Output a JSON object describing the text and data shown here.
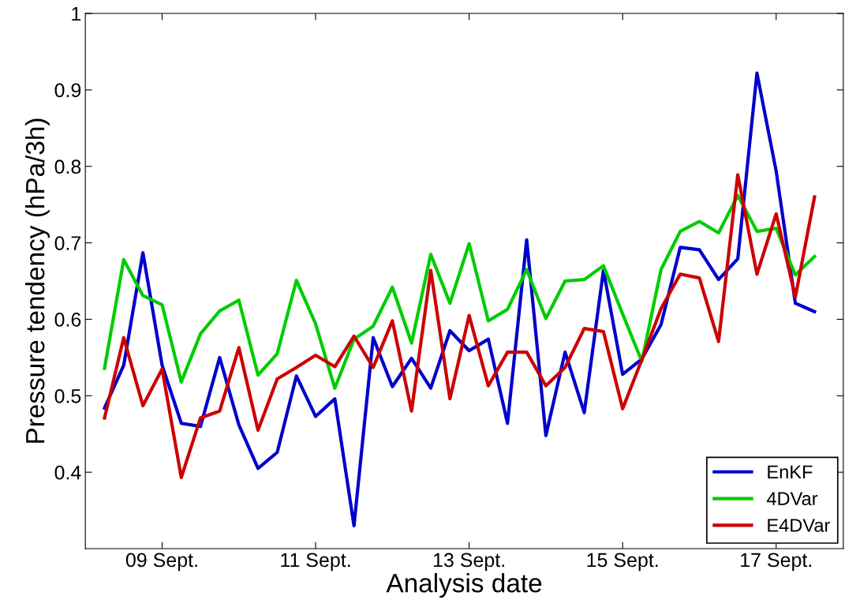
{
  "chart_data": {
    "type": "line",
    "xlabel": "Analysis date",
    "ylabel": "Pressure tendency (hPa/3h)",
    "categories": [
      null,
      null,
      null,
      "09 Sept.",
      null,
      null,
      null,
      null,
      null,
      null,
      null,
      "11 Sept.",
      null,
      null,
      null,
      null,
      null,
      null,
      null,
      "13 Sept.",
      null,
      null,
      null,
      null,
      null,
      null,
      null,
      "15 Sept.",
      null,
      null,
      null,
      null,
      null,
      null,
      null,
      "17 Sept.",
      null,
      null
    ],
    "series": [
      {
        "name": "EnKF",
        "color": "#0000cc",
        "values": [
          0.484,
          0.54,
          0.687,
          0.54,
          0.464,
          0.46,
          0.55,
          0.462,
          0.405,
          0.426,
          0.526,
          0.473,
          0.496,
          0.33,
          0.576,
          0.512,
          0.549,
          0.51,
          0.585,
          0.559,
          0.574,
          0.464,
          0.704,
          0.448,
          0.557,
          0.478,
          0.664,
          0.528,
          0.548,
          0.593,
          0.694,
          0.691,
          0.652,
          0.679,
          0.922,
          0.794,
          0.621,
          0.61
        ]
      },
      {
        "name": "4DVar",
        "color": "#00cc00",
        "values": [
          0.536,
          0.678,
          0.631,
          0.619,
          0.518,
          0.581,
          0.611,
          0.625,
          0.527,
          0.555,
          0.651,
          0.594,
          0.51,
          0.574,
          0.591,
          0.642,
          0.569,
          0.685,
          0.621,
          0.699,
          0.598,
          0.613,
          0.665,
          0.601,
          0.65,
          0.652,
          0.67,
          0.607,
          0.545,
          0.665,
          0.715,
          0.728,
          0.713,
          0.762,
          0.715,
          0.719,
          0.658,
          0.682
        ]
      },
      {
        "name": "E4DVar",
        "color": "#cc0000",
        "values": [
          0.471,
          0.576,
          0.487,
          0.535,
          0.393,
          0.471,
          0.48,
          0.563,
          0.455,
          0.522,
          0.537,
          0.553,
          0.538,
          0.578,
          0.537,
          0.598,
          0.48,
          0.664,
          0.496,
          0.605,
          0.513,
          0.557,
          0.557,
          0.513,
          0.537,
          0.588,
          0.584,
          0.483,
          0.547,
          0.614,
          0.659,
          0.654,
          0.571,
          0.789,
          0.659,
          0.738,
          0.629,
          0.76
        ]
      }
    ],
    "ylim": [
      0.3,
      1
    ],
    "yticks": [
      0.4,
      0.5,
      0.6,
      0.7,
      0.8,
      0.9,
      1
    ],
    "legend": "bottom right",
    "grid": false,
    "marker": "none",
    "line_style": "solid"
  }
}
